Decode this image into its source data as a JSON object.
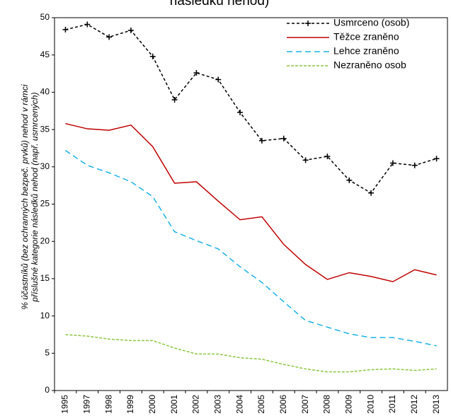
{
  "chart_data": {
    "type": "line",
    "title": "následku nehod)",
    "ylabel": [
      "% účastníků (bez ochranných bezpeč. prvků) nehod  v rámci",
      "příslušné kategorie následků nehod (např. usmrcených)"
    ],
    "categories": [
      "1995",
      "1997",
      "1998",
      "1999",
      "2000",
      "2001",
      "2002",
      "2003",
      "2004",
      "2005",
      "2006",
      "2007",
      "2008",
      "2009",
      "2010",
      "2011",
      "2012",
      "2013"
    ],
    "ylim": [
      0,
      50
    ],
    "yticks": [
      0,
      5,
      10,
      15,
      20,
      25,
      30,
      35,
      40,
      45,
      50
    ],
    "grid": false,
    "legend": "top-right",
    "series": [
      {
        "name": "Usmrceno (osob)",
        "color": "#000000",
        "dash": "4,3",
        "marker": "plus",
        "values": [
          48.4,
          49.1,
          47.4,
          48.3,
          44.8,
          39.0,
          42.6,
          41.7,
          37.3,
          33.5,
          33.8,
          30.9,
          31.4,
          28.2,
          26.5,
          30.5,
          30.2,
          31.1
        ]
      },
      {
        "name": "Těžce zraněno",
        "color": "#c00000",
        "dash": "none",
        "values": [
          35.8,
          35.1,
          34.9,
          35.6,
          32.7,
          27.8,
          28.0,
          25.4,
          22.9,
          23.3,
          19.6,
          16.9,
          14.9,
          15.8,
          15.3,
          14.6,
          16.2,
          15.5
        ]
      },
      {
        "name": "Lehce zraněno",
        "color": "#1ab2e8",
        "dash": "8,5",
        "values": [
          32.2,
          30.2,
          29.2,
          28.0,
          26.0,
          21.3,
          20.1,
          19.0,
          16.6,
          14.5,
          11.9,
          9.4,
          8.5,
          7.6,
          7.1,
          7.1,
          6.6,
          6.0
        ]
      },
      {
        "name": "Nezraněno osob",
        "color": "#8cc63f",
        "dash": "4,2",
        "values": [
          7.5,
          7.3,
          6.9,
          6.7,
          6.7,
          5.7,
          4.9,
          4.9,
          4.4,
          4.2,
          3.5,
          2.9,
          2.5,
          2.5,
          2.8,
          2.9,
          2.7,
          2.9
        ]
      }
    ]
  }
}
